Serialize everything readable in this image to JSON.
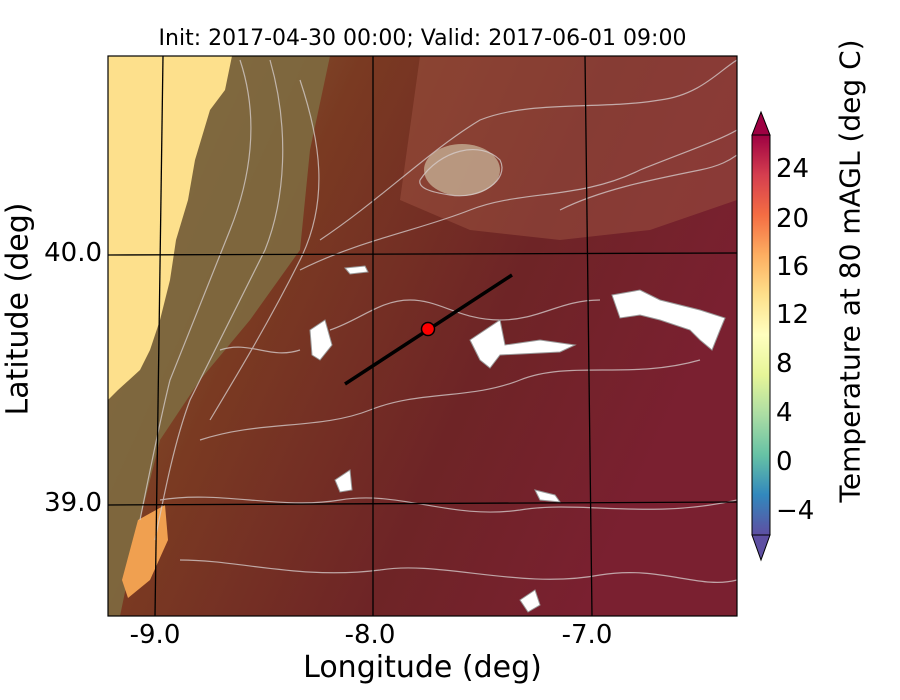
{
  "title": "Init: 2017-04-30 00:00; Valid: 2017-06-01 09:00",
  "xaxis": {
    "label": "Longitude (deg)",
    "ticks": [
      "-9.0",
      "-8.0",
      "-7.0"
    ],
    "tick_values": [
      -9.0,
      -8.0,
      -7.0
    ]
  },
  "yaxis": {
    "label": "Latitude (deg)",
    "ticks": [
      "40.0",
      "39.0"
    ],
    "tick_values": [
      40.0,
      39.0
    ]
  },
  "colorbar": {
    "label": "Temperature at 80 mAGL (deg C)",
    "ticks": [
      "24",
      "20",
      "16",
      "12",
      "8",
      "4",
      "0",
      "−4"
    ],
    "tick_values": [
      24,
      20,
      16,
      12,
      8,
      4,
      0,
      -4
    ],
    "range": [
      -6,
      27
    ],
    "colormap": [
      "#5e4fa2",
      "#3288bd",
      "#66c2a5",
      "#abdda4",
      "#e6f598",
      "#ffffbf",
      "#fee08b",
      "#fdae61",
      "#f46d43",
      "#d53e4f",
      "#9e0142"
    ]
  },
  "map": {
    "ocean_color": "#fde08c",
    "transect_color": "#000000",
    "marker_color": "#ff0000"
  }
}
